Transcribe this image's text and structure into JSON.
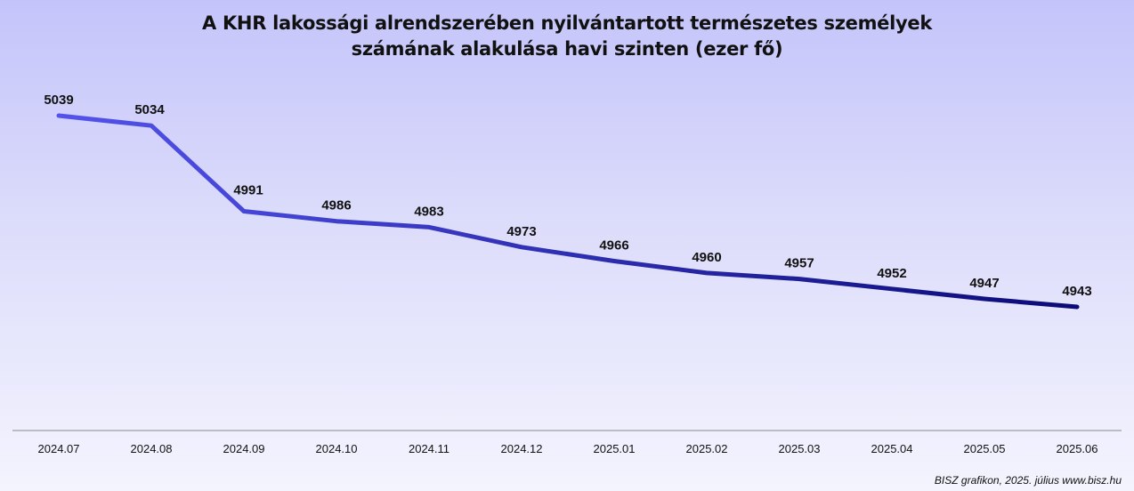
{
  "chart_data": {
    "type": "line",
    "title_lines": [
      "A KHR lakossági alrendszerében nyilvántartott természetes személyek",
      "számának alakulása havi szinten (ezer fő)"
    ],
    "categories": [
      "2024.07",
      "2024.08",
      "2024.09",
      "2024.10",
      "2024.11",
      "2024.12",
      "2025.01",
      "2025.02",
      "2025.03",
      "2025.04",
      "2025.05",
      "2025.06"
    ],
    "values": [
      5039,
      5034,
      4991,
      4986,
      4983,
      4973,
      4966,
      4960,
      4957,
      4952,
      4947,
      4943
    ],
    "xlabel": "",
    "ylabel": "",
    "ylim": [
      4880,
      5060
    ],
    "grid": false,
    "legend": "none",
    "line_colors": [
      "#5353ec",
      "#0a0a78"
    ]
  },
  "footer": "BISZ grafikon, 2025. július www.bisz.hu"
}
